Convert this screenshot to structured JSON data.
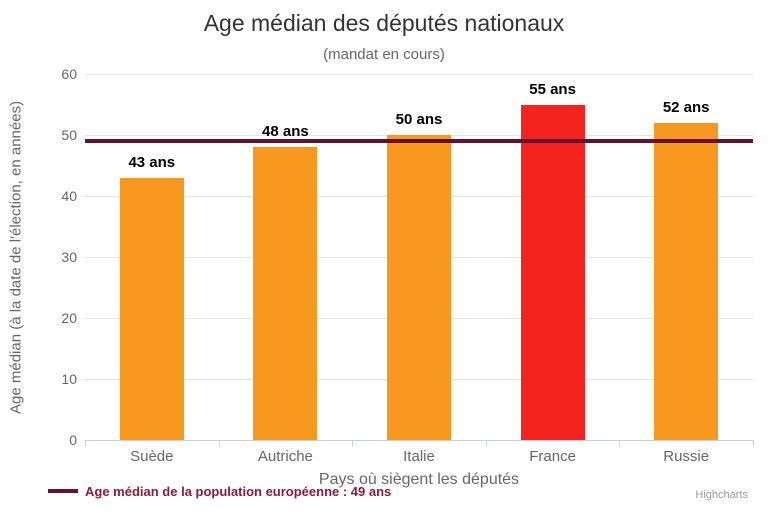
{
  "chart_data": {
    "type": "bar",
    "title": "Age médian des députés nationaux",
    "subtitle": "(mandat en cours)",
    "categories": [
      "Suède",
      "Autriche",
      "Italie",
      "France",
      "Russie"
    ],
    "values": [
      43,
      48,
      50,
      55,
      52
    ],
    "data_labels": [
      "43 ans",
      "48 ans",
      "50 ans",
      "55 ans",
      "52 ans"
    ],
    "bar_colors": [
      "#F8981F",
      "#F8981F",
      "#F8981F",
      "#F5231E",
      "#F8981F"
    ],
    "xlabel": "Pays où siègent les députés",
    "ylabel": "Age médian (à la date de l'élection, en années)",
    "ylim": [
      0,
      60
    ],
    "yticks": [
      0,
      10,
      20,
      30,
      40,
      50,
      60
    ],
    "grid": "on",
    "legend_position": "bottom-left",
    "plot_line": {
      "value": 49,
      "color": "#67102E",
      "label": "Age médian de la population européenne : 49 ans",
      "label_color": "#8C1A3C"
    },
    "credits": "Highcharts"
  },
  "colors": {
    "grid": "#e6e6e6",
    "axis": "#c8d0de",
    "title": "#333333",
    "muted": "#666666",
    "credits": "#999999"
  }
}
